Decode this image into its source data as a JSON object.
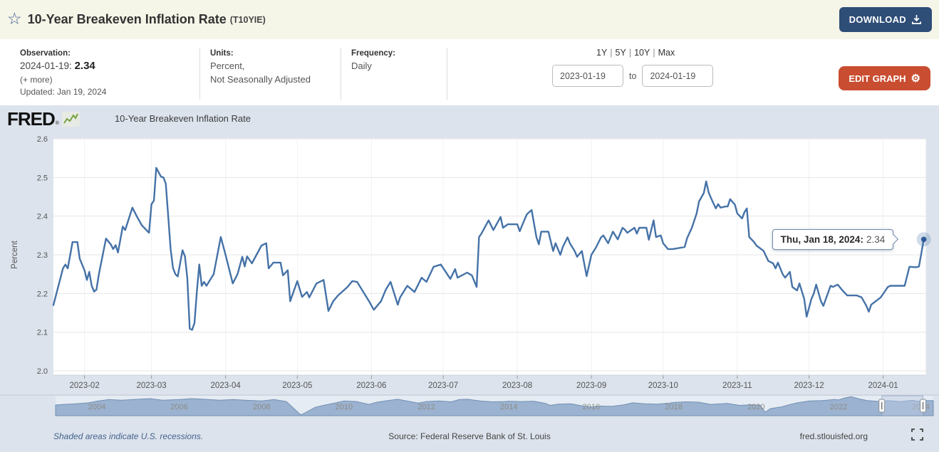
{
  "header": {
    "title": "10-Year Breakeven Inflation Rate",
    "series_id": "(T10YIE)",
    "download_label": "DOWNLOAD"
  },
  "controls": {
    "observation_label": "Observation:",
    "observation_date": "2024-01-19:",
    "observation_value": "2.34",
    "more_link": "(+ more)",
    "updated_text": "Updated: Jan 19, 2024",
    "units_label": "Units:",
    "units_line1": "Percent,",
    "units_line2": "Not Seasonally Adjusted",
    "frequency_label": "Frequency:",
    "frequency_value": "Daily",
    "range_links": [
      "1Y",
      "5Y",
      "10Y",
      "Max"
    ],
    "range_separator": "|",
    "date_from": "2023-01-19",
    "to_label": "to",
    "date_to": "2024-01-19",
    "edit_graph_label": "EDIT GRAPH"
  },
  "brand": {
    "logo_text": "FRED",
    "registered_mark": "®"
  },
  "legend": {
    "series_label": "10-Year Breakeven Inflation Rate"
  },
  "tooltip": {
    "date_part": "Thu, Jan 18, 2024:",
    "value_part": "2.34"
  },
  "chart_data": {
    "type": "line",
    "title": "10-Year Breakeven Inflation Rate",
    "ylabel": "Percent",
    "ylim": [
      2.0,
      2.6
    ],
    "yticks": [
      2.0,
      2.1,
      2.2,
      2.3,
      2.4,
      2.5,
      2.6
    ],
    "x_start": "2023-01-19",
    "x_end": "2024-01-19",
    "total_days": 365,
    "grid": true,
    "legend_position": "top-left",
    "line_color": "#4572a7",
    "x_ticks": [
      {
        "label": "2023-02",
        "day": 13
      },
      {
        "label": "2023-03",
        "day": 41
      },
      {
        "label": "2023-04",
        "day": 72
      },
      {
        "label": "2023-05",
        "day": 102
      },
      {
        "label": "2023-06",
        "day": 133
      },
      {
        "label": "2023-07",
        "day": 163
      },
      {
        "label": "2023-08",
        "day": 194
      },
      {
        "label": "2023-09",
        "day": 225
      },
      {
        "label": "2023-10",
        "day": 255
      },
      {
        "label": "2023-11",
        "day": 286
      },
      {
        "label": "2023-12",
        "day": 316
      },
      {
        "label": "2024-01",
        "day": 347
      }
    ],
    "series": [
      {
        "name": "10-Year Breakeven Inflation Rate",
        "points": [
          [
            0,
            2.17
          ],
          [
            4,
            2.265
          ],
          [
            5,
            2.275
          ],
          [
            6,
            2.265
          ],
          [
            8,
            2.333
          ],
          [
            10,
            2.333
          ],
          [
            11,
            2.29
          ],
          [
            13,
            2.26
          ],
          [
            14,
            2.235
          ],
          [
            15,
            2.256
          ],
          [
            16,
            2.22
          ],
          [
            17,
            2.205
          ],
          [
            18,
            2.21
          ],
          [
            19,
            2.25
          ],
          [
            22,
            2.342
          ],
          [
            24,
            2.327
          ],
          [
            25,
            2.315
          ],
          [
            26,
            2.325
          ],
          [
            27,
            2.306
          ],
          [
            29,
            2.373
          ],
          [
            30,
            2.364
          ],
          [
            33,
            2.422
          ],
          [
            35,
            2.398
          ],
          [
            37,
            2.376
          ],
          [
            40,
            2.357
          ],
          [
            41,
            2.431
          ],
          [
            42,
            2.44
          ],
          [
            43,
            2.525
          ],
          [
            45,
            2.502
          ],
          [
            46,
            2.5
          ],
          [
            47,
            2.484
          ],
          [
            48,
            2.4
          ],
          [
            49,
            2.315
          ],
          [
            50,
            2.266
          ],
          [
            51,
            2.25
          ],
          [
            52,
            2.244
          ],
          [
            54,
            2.312
          ],
          [
            55,
            2.296
          ],
          [
            56,
            2.24
          ],
          [
            57,
            2.109
          ],
          [
            58,
            2.106
          ],
          [
            59,
            2.124
          ],
          [
            60,
            2.207
          ],
          [
            61,
            2.275
          ],
          [
            62,
            2.22
          ],
          [
            63,
            2.23
          ],
          [
            64,
            2.22
          ],
          [
            66,
            2.24
          ],
          [
            67,
            2.25
          ],
          [
            70,
            2.346
          ],
          [
            72,
            2.3
          ],
          [
            75,
            2.226
          ],
          [
            77,
            2.25
          ],
          [
            79,
            2.295
          ],
          [
            80,
            2.27
          ],
          [
            81,
            2.296
          ],
          [
            83,
            2.278
          ],
          [
            87,
            2.324
          ],
          [
            89,
            2.33
          ],
          [
            90,
            2.265
          ],
          [
            92,
            2.28
          ],
          [
            95,
            2.28
          ],
          [
            96,
            2.247
          ],
          [
            98,
            2.26
          ],
          [
            99,
            2.18
          ],
          [
            102,
            2.232
          ],
          [
            104,
            2.191
          ],
          [
            106,
            2.204
          ],
          [
            107,
            2.19
          ],
          [
            110,
            2.226
          ],
          [
            113,
            2.235
          ],
          [
            115,
            2.155
          ],
          [
            117,
            2.18
          ],
          [
            119,
            2.195
          ],
          [
            123,
            2.217
          ],
          [
            125,
            2.232
          ],
          [
            127,
            2.23
          ],
          [
            132,
            2.18
          ],
          [
            134,
            2.158
          ],
          [
            137,
            2.18
          ],
          [
            139,
            2.21
          ],
          [
            141,
            2.23
          ],
          [
            144,
            2.171
          ],
          [
            145,
            2.19
          ],
          [
            148,
            2.22
          ],
          [
            151,
            2.204
          ],
          [
            154,
            2.241
          ],
          [
            156,
            2.23
          ],
          [
            159,
            2.269
          ],
          [
            162,
            2.275
          ],
          [
            165,
            2.247
          ],
          [
            166,
            2.238
          ],
          [
            168,
            2.263
          ],
          [
            169,
            2.241
          ],
          [
            173,
            2.254
          ],
          [
            175,
            2.247
          ],
          [
            177,
            2.217
          ],
          [
            178,
            2.346
          ],
          [
            179,
            2.355
          ],
          [
            182,
            2.389
          ],
          [
            184,
            2.364
          ],
          [
            187,
            2.398
          ],
          [
            188,
            2.37
          ],
          [
            190,
            2.379
          ],
          [
            194,
            2.379
          ],
          [
            195,
            2.361
          ],
          [
            196,
            2.376
          ],
          [
            198,
            2.405
          ],
          [
            200,
            2.416
          ],
          [
            202,
            2.346
          ],
          [
            203,
            2.327
          ],
          [
            204,
            2.36
          ],
          [
            207,
            2.36
          ],
          [
            209,
            2.31
          ],
          [
            210,
            2.33
          ],
          [
            212,
            2.3
          ],
          [
            213,
            2.32
          ],
          [
            215,
            2.345
          ],
          [
            216,
            2.33
          ],
          [
            218,
            2.31
          ],
          [
            219,
            2.295
          ],
          [
            221,
            2.31
          ],
          [
            223,
            2.245
          ],
          [
            225,
            2.3
          ],
          [
            227,
            2.32
          ],
          [
            229,
            2.345
          ],
          [
            230,
            2.35
          ],
          [
            232,
            2.33
          ],
          [
            234,
            2.36
          ],
          [
            236,
            2.34
          ],
          [
            238,
            2.37
          ],
          [
            239,
            2.365
          ],
          [
            240,
            2.357
          ],
          [
            243,
            2.37
          ],
          [
            244,
            2.355
          ],
          [
            245,
            2.37
          ],
          [
            248,
            2.37
          ],
          [
            249,
            2.339
          ],
          [
            251,
            2.389
          ],
          [
            252,
            2.346
          ],
          [
            254,
            2.35
          ],
          [
            255,
            2.33
          ],
          [
            257,
            2.315
          ],
          [
            259,
            2.315
          ],
          [
            264,
            2.32
          ],
          [
            265,
            2.343
          ],
          [
            267,
            2.37
          ],
          [
            269,
            2.407
          ],
          [
            270,
            2.438
          ],
          [
            272,
            2.46
          ],
          [
            273,
            2.49
          ],
          [
            274,
            2.462
          ],
          [
            275,
            2.447
          ],
          [
            277,
            2.42
          ],
          [
            278,
            2.431
          ],
          [
            279,
            2.422
          ],
          [
            281,
            2.425
          ],
          [
            282,
            2.425
          ],
          [
            283,
            2.444
          ],
          [
            285,
            2.43
          ],
          [
            286,
            2.407
          ],
          [
            288,
            2.394
          ],
          [
            289,
            2.41
          ],
          [
            290,
            2.42
          ],
          [
            291,
            2.346
          ],
          [
            293,
            2.333
          ],
          [
            294,
            2.324
          ],
          [
            296,
            2.315
          ],
          [
            297,
            2.31
          ],
          [
            299,
            2.284
          ],
          [
            301,
            2.278
          ],
          [
            302,
            2.265
          ],
          [
            303,
            2.28
          ],
          [
            305,
            2.25
          ],
          [
            306,
            2.241
          ],
          [
            308,
            2.256
          ],
          [
            309,
            2.217
          ],
          [
            311,
            2.208
          ],
          [
            312,
            2.226
          ],
          [
            314,
            2.186
          ],
          [
            315,
            2.14
          ],
          [
            317,
            2.186
          ],
          [
            318,
            2.2
          ],
          [
            319,
            2.223
          ],
          [
            321,
            2.18
          ],
          [
            322,
            2.168
          ],
          [
            325,
            2.22
          ],
          [
            326,
            2.217
          ],
          [
            328,
            2.223
          ],
          [
            330,
            2.208
          ],
          [
            332,
            2.195
          ],
          [
            336,
            2.195
          ],
          [
            338,
            2.19
          ],
          [
            340,
            2.168
          ],
          [
            341,
            2.153
          ],
          [
            342,
            2.171
          ],
          [
            346,
            2.19
          ],
          [
            348,
            2.208
          ],
          [
            349,
            2.217
          ],
          [
            350,
            2.22
          ],
          [
            356,
            2.22
          ],
          [
            358,
            2.269
          ],
          [
            361,
            2.268
          ],
          [
            362,
            2.27
          ],
          [
            363,
            2.305
          ],
          [
            364,
            2.34
          ]
        ]
      }
    ],
    "last_point": {
      "label": "Thu, Jan 18, 2024",
      "value": 2.34
    }
  },
  "navigator_data": {
    "type": "area",
    "x_start_year": 2003.0,
    "x_end_year": 2024.3,
    "ylim": [
      0,
      3.2
    ],
    "year_labels": [
      2004,
      2006,
      2008,
      2010,
      2012,
      2014,
      2016,
      2018,
      2020,
      2022,
      2024
    ],
    "selection_years": [
      2023.05,
      2024.05
    ],
    "points": [
      [
        2003.0,
        1.65
      ],
      [
        2003.2,
        1.75
      ],
      [
        2003.5,
        1.85
      ],
      [
        2003.8,
        2.0
      ],
      [
        2004.0,
        2.25
      ],
      [
        2004.3,
        2.5
      ],
      [
        2004.6,
        2.4
      ],
      [
        2005.0,
        2.55
      ],
      [
        2005.3,
        2.65
      ],
      [
        2005.6,
        2.4
      ],
      [
        2006.0,
        2.5
      ],
      [
        2006.3,
        2.65
      ],
      [
        2006.6,
        2.55
      ],
      [
        2007.0,
        2.4
      ],
      [
        2007.3,
        2.5
      ],
      [
        2007.6,
        2.4
      ],
      [
        2008.0,
        2.3
      ],
      [
        2008.3,
        2.5
      ],
      [
        2008.6,
        2.2
      ],
      [
        2008.8,
        1.0
      ],
      [
        2008.95,
        0.12
      ],
      [
        2009.1,
        0.6
      ],
      [
        2009.3,
        1.3
      ],
      [
        2009.5,
        1.6
      ],
      [
        2009.8,
        2.0
      ],
      [
        2010.0,
        2.3
      ],
      [
        2010.3,
        2.2
      ],
      [
        2010.6,
        1.75
      ],
      [
        2010.8,
        2.1
      ],
      [
        2011.0,
        2.3
      ],
      [
        2011.3,
        2.55
      ],
      [
        2011.6,
        2.2
      ],
      [
        2011.8,
        1.95
      ],
      [
        2012.0,
        2.2
      ],
      [
        2012.3,
        2.3
      ],
      [
        2012.6,
        2.15
      ],
      [
        2012.8,
        2.5
      ],
      [
        2013.0,
        2.55
      ],
      [
        2013.3,
        2.3
      ],
      [
        2013.6,
        2.15
      ],
      [
        2013.9,
        2.2
      ],
      [
        2014.0,
        2.25
      ],
      [
        2014.3,
        2.2
      ],
      [
        2014.6,
        2.25
      ],
      [
        2014.9,
        1.9
      ],
      [
        2015.0,
        1.6
      ],
      [
        2015.2,
        1.8
      ],
      [
        2015.5,
        1.85
      ],
      [
        2015.8,
        1.5
      ],
      [
        2016.0,
        1.35
      ],
      [
        2016.2,
        1.5
      ],
      [
        2016.5,
        1.45
      ],
      [
        2016.8,
        1.7
      ],
      [
        2017.0,
        2.0
      ],
      [
        2017.3,
        1.85
      ],
      [
        2017.6,
        1.8
      ],
      [
        2017.9,
        1.95
      ],
      [
        2018.0,
        2.05
      ],
      [
        2018.3,
        2.15
      ],
      [
        2018.6,
        2.1
      ],
      [
        2018.9,
        1.75
      ],
      [
        2019.0,
        1.8
      ],
      [
        2019.3,
        1.9
      ],
      [
        2019.6,
        1.6
      ],
      [
        2019.9,
        1.7
      ],
      [
        2020.1,
        1.6
      ],
      [
        2020.22,
        0.55
      ],
      [
        2020.35,
        1.1
      ],
      [
        2020.6,
        1.35
      ],
      [
        2020.8,
        1.7
      ],
      [
        2021.0,
        2.0
      ],
      [
        2021.3,
        2.3
      ],
      [
        2021.6,
        2.35
      ],
      [
        2021.9,
        2.5
      ],
      [
        2022.0,
        2.45
      ],
      [
        2022.15,
        2.75
      ],
      [
        2022.3,
        2.95
      ],
      [
        2022.5,
        2.6
      ],
      [
        2022.7,
        2.35
      ],
      [
        2022.9,
        2.25
      ],
      [
        2023.0,
        2.2
      ],
      [
        2023.2,
        2.35
      ],
      [
        2023.5,
        2.2
      ],
      [
        2023.8,
        2.4
      ],
      [
        2023.9,
        2.25
      ],
      [
        2024.0,
        2.25
      ],
      [
        2024.05,
        2.34
      ]
    ]
  },
  "footer": {
    "recessions_note": "Shaded areas indicate U.S. recessions.",
    "source": "Source: Federal Reserve Bank of St. Louis",
    "site": "fred.stlouisfed.org"
  }
}
